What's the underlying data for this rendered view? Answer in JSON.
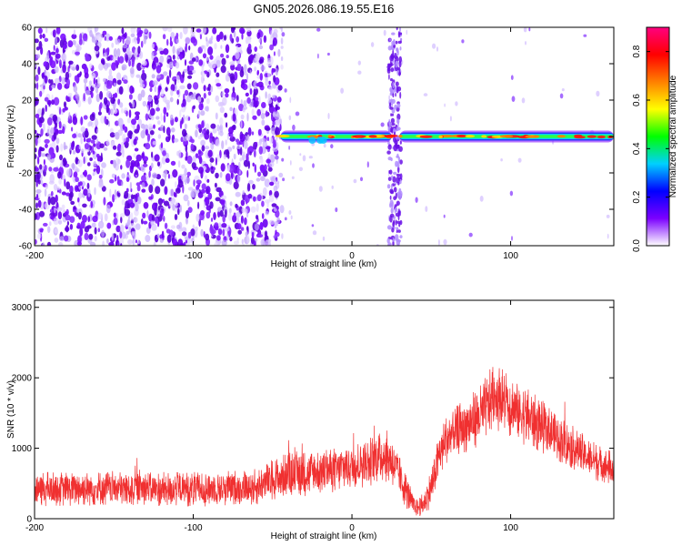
{
  "figure": {
    "title": "GN05.2026.086.19.55.E16"
  },
  "chart_data": [
    {
      "type": "heatmap",
      "xlabel": "Height of straight line (km)",
      "ylabel": "Frequency (Hz)",
      "xlim": [
        -200,
        165
      ],
      "ylim": [
        -60,
        60
      ],
      "xticks": [
        -200,
        -100,
        0,
        100
      ],
      "yticks": [
        -60,
        -40,
        -20,
        0,
        20,
        40,
        60
      ],
      "colorbar": {
        "label": "Normalized spectral amplitude",
        "range": [
          0,
          0.9
        ],
        "ticks": [
          0.0,
          0.2,
          0.4,
          0.6,
          0.8
        ],
        "colormap": [
          "#ffffff",
          "#7b00ff",
          "#0000ff",
          "#00d0ff",
          "#00ff00",
          "#ffff00",
          "#ff8000",
          "#ff0000",
          "#ff0080"
        ]
      },
      "features": {
        "noise_region_x": [
          -200,
          -50
        ],
        "carrier_line": {
          "x_start": -45,
          "x_end": 165,
          "frequency": 0
        },
        "carrier_gap_x": [
          25,
          30
        ],
        "vertical_band_x": 27
      },
      "grid": false
    },
    {
      "type": "line",
      "xlabel": "Height of straight line (km)",
      "ylabel": "SNR (10 * v/v)",
      "xlim": [
        -200,
        165
      ],
      "ylim": [
        0,
        3100
      ],
      "xticks": [
        -200,
        -100,
        0,
        100
      ],
      "yticks": [
        0,
        1000,
        2000,
        3000
      ],
      "color": "#f03030",
      "envelope": {
        "x": [
          -200,
          -150,
          -100,
          -60,
          -50,
          -40,
          -25,
          -10,
          0,
          10,
          20,
          25,
          30,
          35,
          40,
          45,
          50,
          55,
          60,
          70,
          80,
          90,
          100,
          110,
          120,
          130,
          140,
          150,
          165
        ],
        "mean": [
          420,
          430,
          420,
          450,
          550,
          620,
          650,
          700,
          750,
          800,
          900,
          850,
          600,
          350,
          150,
          200,
          450,
          900,
          1150,
          1300,
          1450,
          1750,
          1600,
          1450,
          1300,
          1150,
          1000,
          850,
          700
        ],
        "spread": [
          250,
          250,
          250,
          260,
          300,
          330,
          330,
          330,
          340,
          350,
          380,
          370,
          300,
          230,
          120,
          170,
          280,
          330,
          350,
          380,
          420,
          480,
          460,
          420,
          380,
          340,
          310,
          280,
          250
        ]
      },
      "grid": false
    }
  ]
}
